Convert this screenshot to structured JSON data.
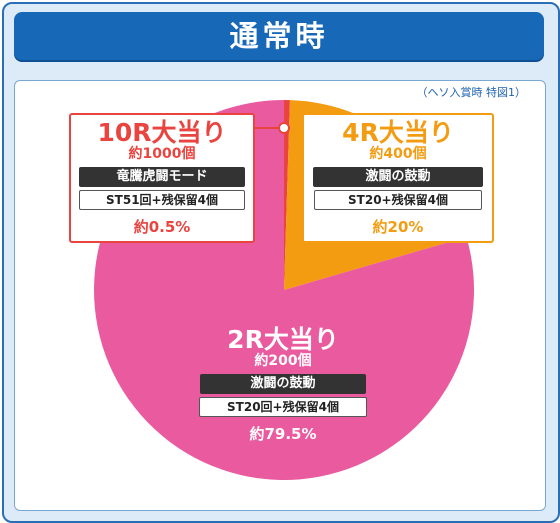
{
  "header": {
    "title": "通常時"
  },
  "note": "（ヘソ入賞時 特図1）",
  "colors": {
    "pink": "#ea5a9f",
    "orange": "#f39c12",
    "red": "#e9443f",
    "banner": "#1768b6"
  },
  "chart_data": {
    "type": "pie",
    "title": "通常時",
    "slices": [
      {
        "name": "10R大当り",
        "value": 0.5,
        "color": "#e9443f"
      },
      {
        "name": "4R大当り",
        "value": 20,
        "color": "#f39c12"
      },
      {
        "name": "2R大当り",
        "value": 79.5,
        "color": "#ea5a9f"
      }
    ]
  },
  "labels": {
    "r10": {
      "title": "10R大当り",
      "payout": "約1000個",
      "mode": "竜騰虎闘モード",
      "st": "ST51回+残保留4個",
      "pct": "約0.5%"
    },
    "r4": {
      "title": "4R大当り",
      "payout": "約400個",
      "mode": "激闘の鼓動",
      "st": "ST20+残保留4個",
      "pct": "約20%"
    },
    "r2": {
      "title": "2R大当り",
      "payout": "約200個",
      "mode": "激闘の鼓動",
      "st": "ST20回+残保留4個",
      "pct": "約79.5%"
    }
  }
}
